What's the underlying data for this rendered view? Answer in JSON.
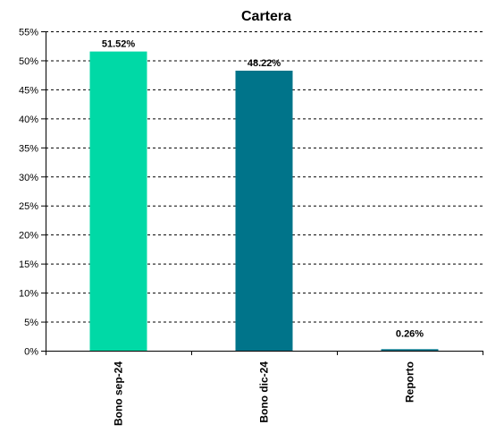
{
  "chart_data": {
    "type": "bar",
    "title": "Cartera",
    "xlabel": "",
    "ylabel": "",
    "categories": [
      "Bono sep-24",
      "Bono dic-24",
      "Reporto"
    ],
    "values": [
      51.52,
      48.22,
      0.26
    ],
    "data_labels": [
      "51.52%",
      "48.22%",
      "0.26%"
    ],
    "ylim": [
      0,
      55
    ],
    "yticks": [
      0,
      5,
      10,
      15,
      20,
      25,
      30,
      35,
      40,
      45,
      50,
      55
    ],
    "ytick_labels": [
      "0%",
      "5%",
      "10%",
      "15%",
      "20%",
      "25%",
      "30%",
      "35%",
      "40%",
      "45%",
      "50%",
      "55%"
    ],
    "bar_colors": [
      "#00D9A6",
      "#00748A",
      "#00748A"
    ],
    "grid": true,
    "grid_style": "dashed",
    "legend": "none"
  }
}
